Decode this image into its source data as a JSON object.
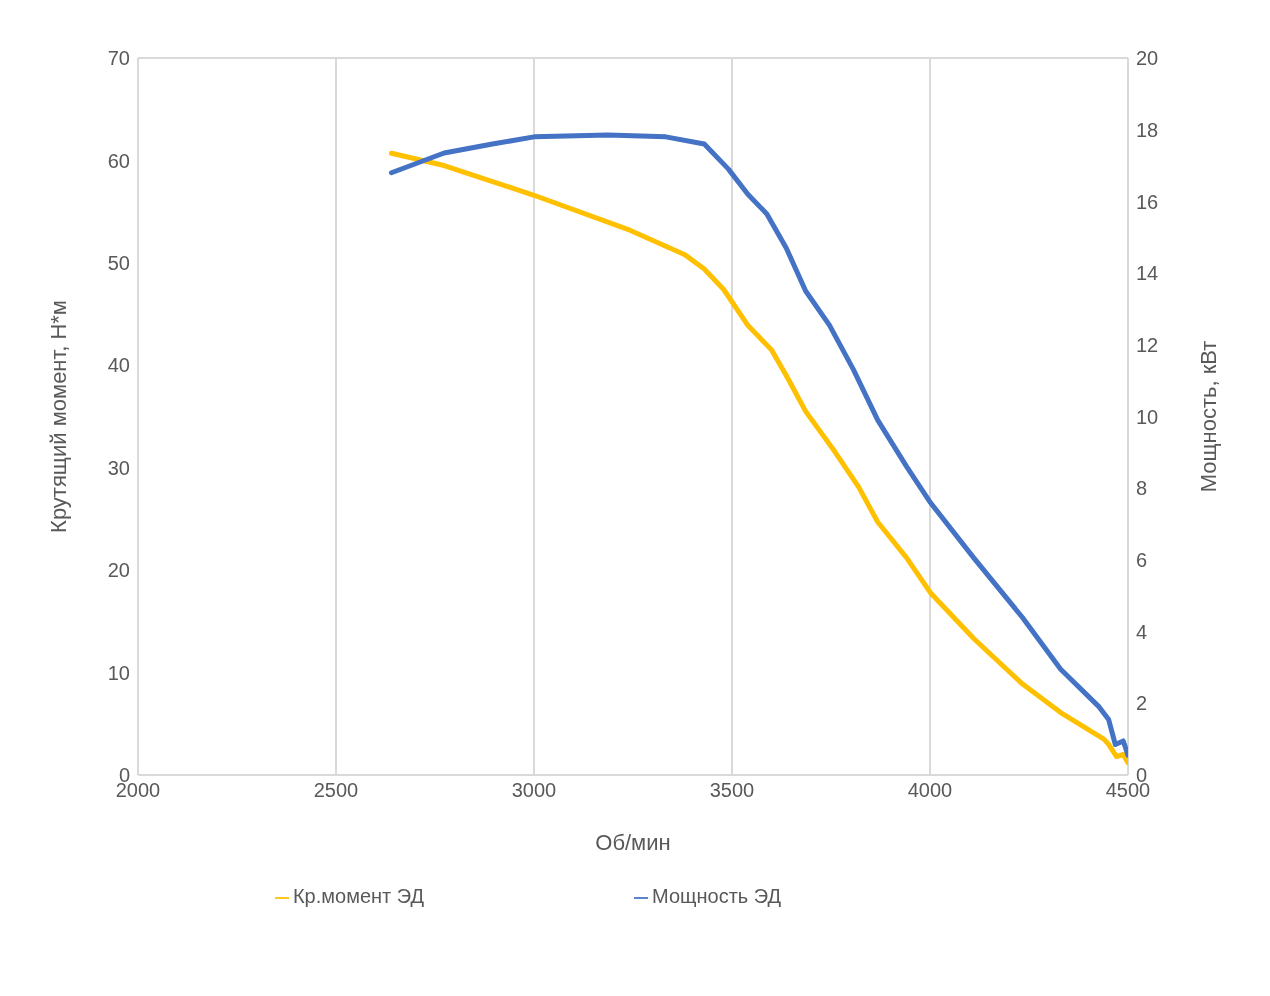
{
  "chart_data": {
    "type": "line",
    "xlabel": "Об/мин",
    "ylabel": "Крутящий момент, Н*м",
    "y2label": "Мощность, кВт",
    "xlim": [
      2000,
      4500
    ],
    "xticks": [
      2000,
      2500,
      3000,
      3500,
      4000,
      4500
    ],
    "ylim": [
      0,
      70
    ],
    "yticks": [
      0,
      10,
      20,
      30,
      40,
      50,
      60,
      70
    ],
    "y2lim": [
      0,
      20
    ],
    "y2ticks": [
      0,
      2,
      4,
      6,
      8,
      10,
      12,
      14,
      16,
      18,
      20
    ],
    "grid": true,
    "legend": "bottom",
    "marker": "none",
    "line_style": "solid",
    "series": [
      {
        "name": "Кр.момент ЭД",
        "color": "#ffc000",
        "x": [
          2640,
          2773,
          3000,
          3235,
          3381,
          3430,
          3479,
          3540,
          3600,
          3637,
          3686,
          3759,
          3820,
          3868,
          3941,
          4001,
          4111,
          4233,
          4330,
          4439,
          4451,
          4471,
          4488,
          4500
        ],
        "values": [
          60.7,
          59.5,
          56.6,
          53.3,
          50.8,
          49.4,
          47.4,
          43.9,
          41.5,
          39.0,
          35.5,
          31.6,
          28.1,
          24.7,
          21.2,
          17.8,
          13.3,
          8.9,
          6.1,
          3.5,
          3.0,
          1.8,
          2.0,
          1.2
        ]
      },
      {
        "name": "Мощность ЭД",
        "color": "#4472c4",
        "axis": "y2",
        "x": [
          2640,
          2773,
          2895,
          3000,
          3187,
          3333,
          3430,
          3491,
          3540,
          3588,
          3637,
          3686,
          3746,
          3807,
          3868,
          3941,
          4001,
          4111,
          4233,
          4330,
          4427,
          4451,
          4468,
          4488,
          4500
        ],
        "values": [
          16.8,
          17.35,
          17.6,
          17.8,
          17.85,
          17.8,
          17.6,
          16.9,
          16.2,
          15.65,
          14.7,
          13.5,
          12.55,
          11.3,
          9.9,
          8.6,
          7.6,
          6.05,
          4.4,
          2.95,
          1.9,
          1.55,
          0.85,
          0.95,
          0.55
        ]
      }
    ]
  }
}
